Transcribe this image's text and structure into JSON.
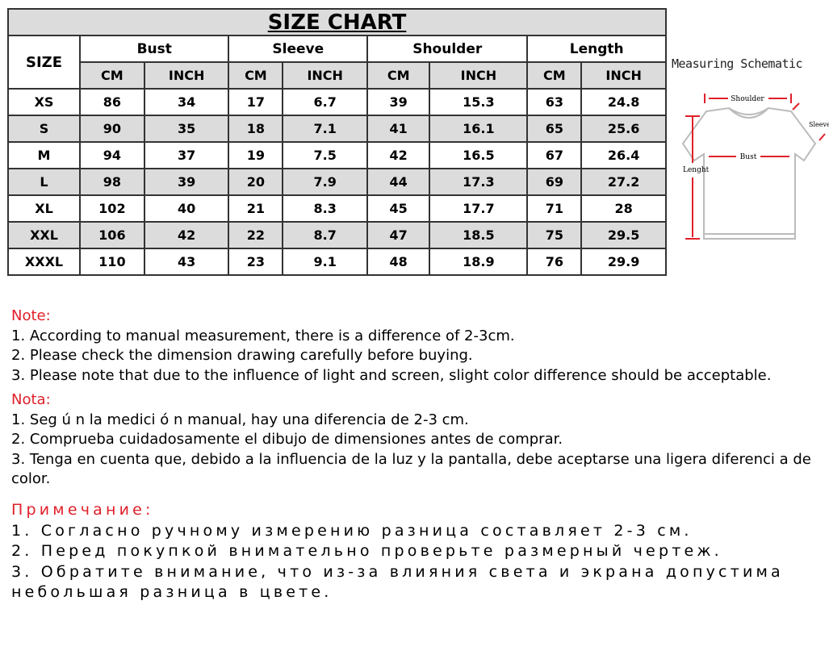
{
  "title": "SIZE CHART",
  "size_header": "SIZE",
  "groups": [
    "Bust",
    "Sleeve",
    "Shoulder",
    "Length"
  ],
  "units": [
    "CM",
    "INCH"
  ],
  "rows": [
    [
      "XS",
      "86",
      "34",
      "17",
      "6.7",
      "39",
      "15.3",
      "63",
      "24.8"
    ],
    [
      "S",
      "90",
      "35",
      "18",
      "7.1",
      "41",
      "16.1",
      "65",
      "25.6"
    ],
    [
      "M",
      "94",
      "37",
      "19",
      "7.5",
      "42",
      "16.5",
      "67",
      "26.4"
    ],
    [
      "L",
      "98",
      "39",
      "20",
      "7.9",
      "44",
      "17.3",
      "69",
      "27.2"
    ],
    [
      "XL",
      "102",
      "40",
      "21",
      "8.3",
      "45",
      "17.7",
      "71",
      "28"
    ],
    [
      "XXL",
      "106",
      "42",
      "22",
      "8.7",
      "47",
      "18.5",
      "75",
      "29.5"
    ],
    [
      "XXXL",
      "110",
      "43",
      "23",
      "9.1",
      "48",
      "18.9",
      "76",
      "29.9"
    ]
  ],
  "schematic": {
    "title": "Measuring Schematic",
    "shoulder": "Shoulder",
    "sleeve": "Sleeve",
    "bust": "Bust",
    "length": "Lenght"
  },
  "notes_en": {
    "heading": "Note:",
    "lines": [
      "1. According to manual measurement, there is a difference of 2-3cm.",
      "2. Please check the dimension drawing carefully before buying.",
      "3. Please note that due to the influence of light and screen, slight color difference should be acceptable."
    ]
  },
  "notes_es": {
    "heading": "Nota:",
    "lines": [
      "1. Seg ú n la medici ó n manual, hay una diferencia de 2-3 cm.",
      "2. Comprueba cuidadosamente el dibujo de dimensiones antes de comprar.",
      "3. Tenga en cuenta que, debido a la influencia de la luz y la pantalla, debe aceptarse una ligera diferenci a de color."
    ]
  },
  "notes_ru": {
    "heading": "Примечание:",
    "lines": [
      "1. Согласно ручному измерению разница составляет 2-3 см.",
      "2. Перед покупкой внимательно проверьте размерный чертеж.",
      "3. Обратите внимание, что из-за влияния света и экрана допустима небольшая разница в цвете."
    ]
  },
  "colors": {
    "note_heading": "#e0202a",
    "header_bg": "#dcdcdc",
    "arrow": "#e0202a"
  }
}
